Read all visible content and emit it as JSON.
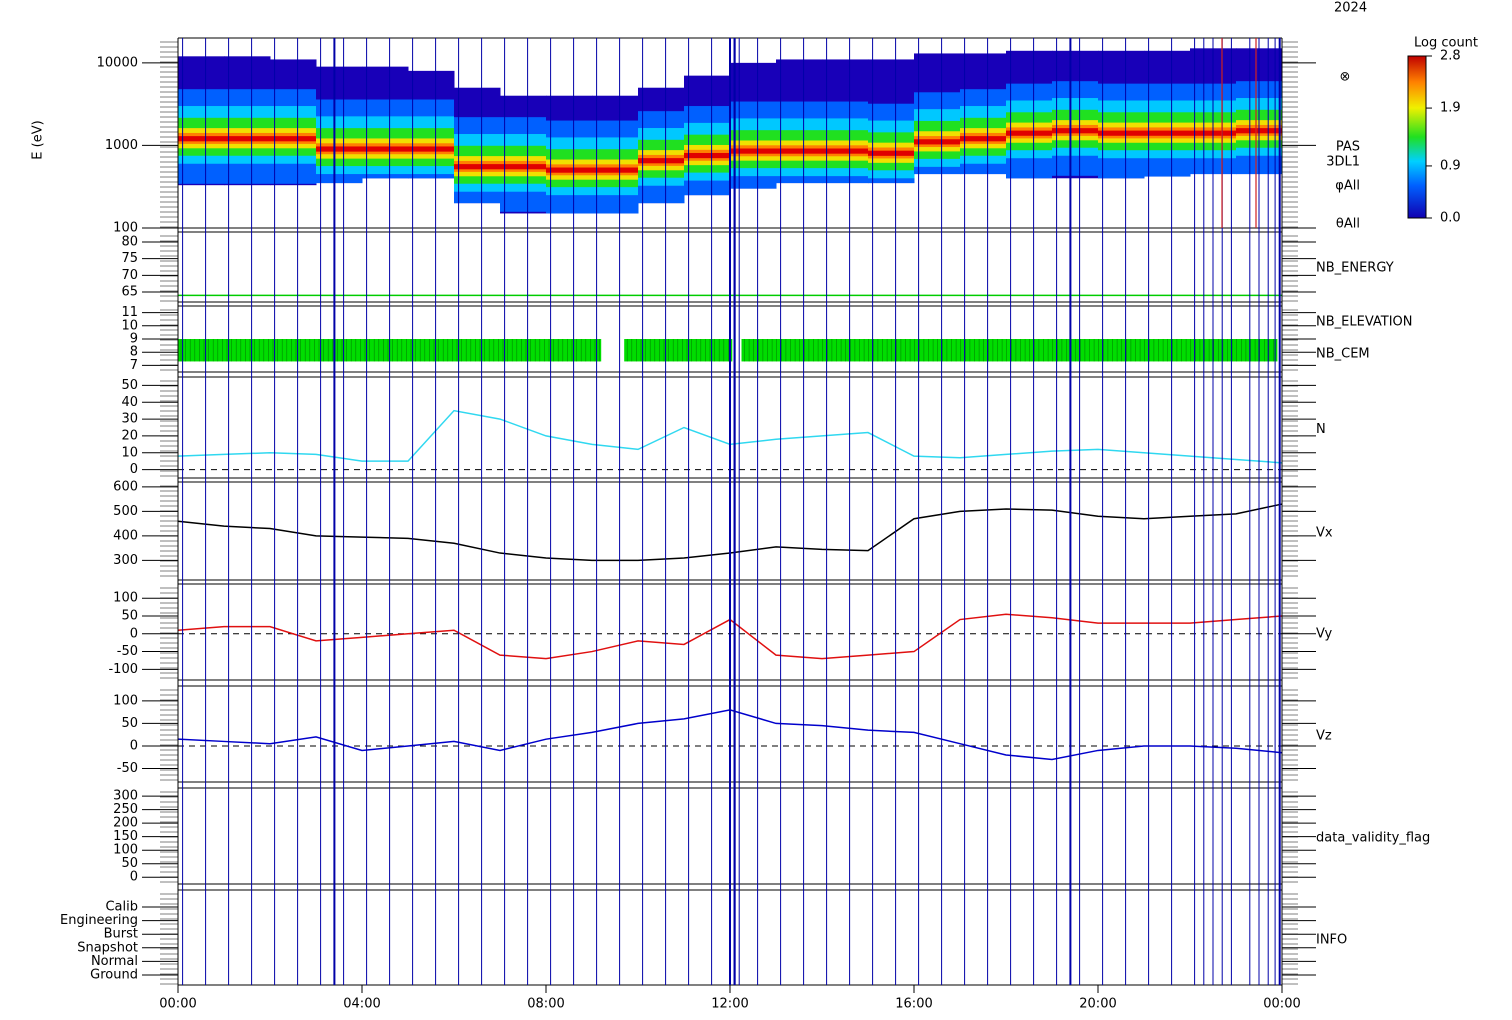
{
  "chart_data": [
    {
      "type": "spectrogram",
      "title": "2024",
      "ylabel": "E (eV)",
      "log": true,
      "ylim": [
        100,
        20000
      ],
      "yticks": [
        100,
        1000,
        10000
      ],
      "bins": [
        0,
        1,
        2,
        3,
        4,
        5,
        6,
        7,
        8,
        9,
        10,
        11,
        12,
        13,
        14,
        15,
        16,
        17,
        18,
        19,
        20,
        21,
        22,
        23,
        24
      ],
      "peak": [
        1200,
        1200,
        1200,
        900,
        900,
        900,
        550,
        550,
        500,
        500,
        650,
        750,
        850,
        850,
        850,
        800,
        1100,
        1200,
        1400,
        1500,
        1400,
        1400,
        1400,
        1500
      ],
      "low": [
        330,
        330,
        330,
        350,
        400,
        400,
        200,
        150,
        150,
        150,
        200,
        250,
        300,
        350,
        350,
        350,
        450,
        450,
        400,
        400,
        400,
        420,
        450,
        450
      ],
      "high": [
        12000,
        12000,
        11000,
        9000,
        9000,
        8000,
        5000,
        4000,
        4000,
        4000,
        5000,
        7000,
        10000,
        11000,
        11000,
        11000,
        13000,
        13000,
        14000,
        14000,
        14000,
        14000,
        15000,
        15000
      ],
      "labels": [
        "PAS",
        "3DL1",
        "φAll",
        "θAll"
      ],
      "symbol": "⊗",
      "colorbar": {
        "title": "Log count",
        "clim": [
          0,
          2.8
        ],
        "ticks": [
          {
            "value": 0,
            "label": "0.0"
          },
          0.9,
          1.9,
          2.8
        ]
      }
    },
    {
      "type": "line",
      "label": "NB_ENERGY",
      "label_color": "#00cc00",
      "ylim": [
        62,
        83
      ],
      "yticks": [
        65,
        70,
        75,
        80
      ],
      "x": [
        0,
        24
      ],
      "series": [
        {
          "color": "#00cc00",
          "values": [
            64,
            64
          ]
        }
      ]
    },
    {
      "type": "blocks",
      "labels": [
        "NB_ELEVATION",
        "NB_CEM"
      ],
      "label_colors": [
        "#00cc00",
        "#0000cc"
      ],
      "ylim": [
        6.5,
        11.5
      ],
      "yticks": [
        7,
        8,
        9,
        10,
        11
      ],
      "color": "#00dd00",
      "range": [
        7.3,
        9
      ],
      "segments": [
        [
          0,
          9.2
        ],
        [
          9.7,
          12.05
        ],
        [
          12.25,
          23.9
        ]
      ]
    },
    {
      "type": "line",
      "label": "N",
      "label_color": "#30d8f0",
      "ylim": [
        -5,
        55
      ],
      "yticks": [
        0,
        10,
        20,
        30,
        40,
        50
      ],
      "zero_line": true,
      "x": [
        0,
        1,
        2,
        3,
        4,
        5,
        6,
        7,
        8,
        9,
        10,
        11,
        12,
        13,
        14,
        15,
        16,
        17,
        18,
        19,
        20,
        21,
        22,
        23,
        24
      ],
      "series": [
        {
          "color": "#30d8f0",
          "values": [
            8,
            9,
            10,
            9,
            5,
            5,
            35,
            30,
            20,
            15,
            12,
            25,
            15,
            18,
            20,
            22,
            8,
            7,
            9,
            11,
            12,
            10,
            8,
            6,
            4
          ]
        }
      ]
    },
    {
      "type": "line",
      "label": "Vx",
      "label_color": "#000000",
      "ylim": [
        220,
        620
      ],
      "yticks": [
        300,
        400,
        500,
        600
      ],
      "x": [
        0,
        1,
        2,
        3,
        4,
        5,
        6,
        7,
        8,
        9,
        10,
        11,
        12,
        13,
        14,
        15,
        16,
        17,
        18,
        19,
        20,
        21,
        22,
        23,
        24
      ],
      "series": [
        {
          "color": "#000000",
          "values": [
            460,
            440,
            430,
            400,
            395,
            390,
            370,
            330,
            310,
            300,
            300,
            310,
            330,
            355,
            345,
            340,
            470,
            500,
            510,
            505,
            480,
            470,
            480,
            490,
            530
          ]
        }
      ]
    },
    {
      "type": "line",
      "label": "Vy",
      "label_color": "#e01010",
      "ylim": [
        -130,
        140
      ],
      "yticks": [
        -100,
        -50,
        0,
        50,
        100
      ],
      "zero_line": true,
      "x": [
        0,
        1,
        2,
        3,
        4,
        5,
        6,
        7,
        8,
        9,
        10,
        11,
        12,
        13,
        14,
        15,
        16,
        17,
        18,
        19,
        20,
        21,
        22,
        23,
        24
      ],
      "series": [
        {
          "color": "#e01010",
          "values": [
            10,
            20,
            20,
            -20,
            -10,
            0,
            10,
            -60,
            -70,
            -50,
            -20,
            -30,
            40,
            -60,
            -70,
            -60,
            -50,
            40,
            55,
            45,
            30,
            30,
            30,
            40,
            50
          ]
        }
      ]
    },
    {
      "type": "line",
      "label": "Vz",
      "label_color": "#0000cc",
      "ylim": [
        -80,
        133
      ],
      "yticks": [
        -50,
        0,
        50,
        100
      ],
      "zero_line": true,
      "x": [
        0,
        1,
        2,
        3,
        4,
        5,
        6,
        7,
        8,
        9,
        10,
        11,
        12,
        13,
        14,
        15,
        16,
        17,
        18,
        19,
        20,
        21,
        22,
        23,
        24
      ],
      "series": [
        {
          "color": "#0000cc",
          "values": [
            15,
            10,
            5,
            20,
            -10,
            0,
            10,
            -10,
            15,
            30,
            50,
            60,
            80,
            50,
            45,
            35,
            30,
            5,
            -20,
            -30,
            -10,
            0,
            0,
            -5,
            -15
          ]
        }
      ]
    },
    {
      "type": "line",
      "label": "data_validity_flag",
      "label_color": "#000000",
      "ylim": [
        -25,
        330
      ],
      "yticks": [
        0,
        50,
        100,
        150,
        200,
        250,
        300
      ],
      "x": [],
      "series": []
    },
    {
      "type": "states",
      "label": "INFO",
      "label_color": "#000000",
      "categories": [
        "Ground",
        "Normal",
        "Snapshot",
        "Burst",
        "Engineering",
        "Calib"
      ]
    }
  ],
  "time_axis": {
    "xlim": [
      0,
      24
    ],
    "xticks": [
      {
        "value": 0,
        "label": "00:00"
      },
      {
        "value": 4,
        "label": "04:00"
      },
      {
        "value": 8,
        "label": "08:00"
      },
      {
        "value": 12,
        "label": "12:00"
      },
      {
        "value": 16,
        "label": "16:00"
      },
      {
        "value": 20,
        "label": "20:00"
      },
      {
        "value": 24,
        "label": "00:00"
      }
    ]
  }
}
